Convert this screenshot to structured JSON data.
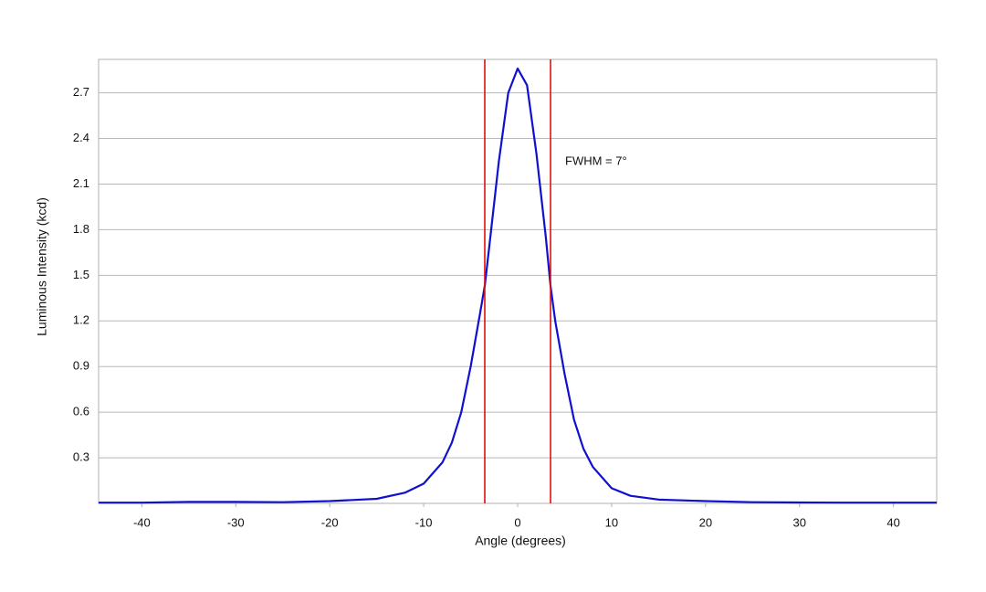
{
  "chart_data": {
    "type": "line",
    "xlabel": "Angle (degrees)",
    "ylabel": "Luminous Intensity (kcd)",
    "annotation": "FWHM = 7°",
    "x": [
      -44.6,
      -40,
      -35,
      -30,
      -25,
      -20,
      -15,
      -12,
      -10,
      -8,
      -7,
      -6,
      -5,
      -4,
      -3.5,
      -3,
      -2,
      -1,
      0,
      1,
      2,
      3,
      3.5,
      4,
      5,
      6,
      7,
      8,
      10,
      12,
      15,
      20,
      25,
      30,
      35,
      40,
      44.6
    ],
    "values": [
      0.005,
      0.005,
      0.01,
      0.01,
      0.008,
      0.015,
      0.03,
      0.07,
      0.13,
      0.27,
      0.4,
      0.6,
      0.9,
      1.25,
      1.43,
      1.7,
      2.25,
      2.7,
      2.86,
      2.75,
      2.3,
      1.75,
      1.43,
      1.2,
      0.85,
      0.55,
      0.36,
      0.24,
      0.1,
      0.05,
      0.025,
      0.015,
      0.008,
      0.006,
      0.005,
      0.005,
      0.005
    ],
    "color": "#1010d0",
    "vlines": [
      {
        "x": -3.5,
        "color": "#e01010"
      },
      {
        "x": 3.5,
        "color": "#e01010"
      }
    ],
    "xlim": [
      -44.6,
      44.6
    ],
    "xticks": [
      -40,
      -30,
      -20,
      -10,
      0,
      10,
      20,
      30,
      40
    ],
    "ylim": [
      0,
      2.92
    ],
    "yticks": [
      0.3,
      0.6,
      0.9,
      1.2,
      1.5,
      1.8,
      2.1,
      2.4,
      2.7
    ],
    "grid": true
  }
}
